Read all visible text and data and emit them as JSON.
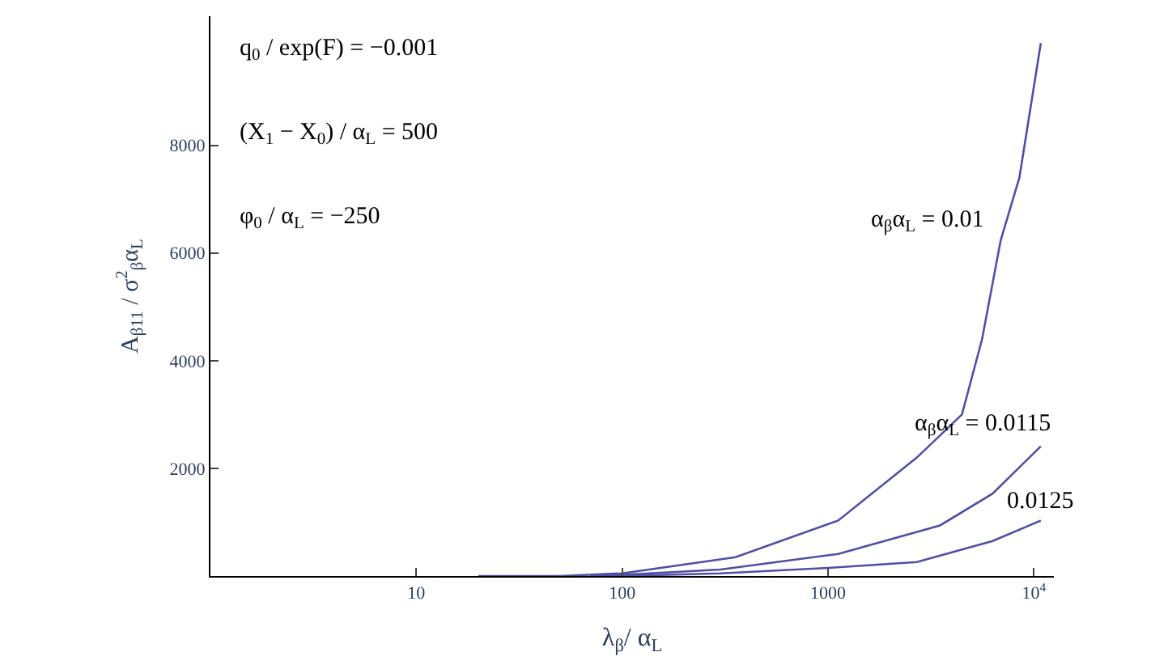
{
  "chart_data": {
    "type": "line",
    "xlabel": "λ$_{β}$/ α$_{L}$",
    "ylabel": "A$_{β11}$ / σ$^{2}$$_{β}$α$_{L}$",
    "log": "x",
    "legend": false,
    "marker": "none",
    "line_style": "solid",
    "xlim": [
      1,
      12500
    ],
    "ylim": [
      0,
      10400
    ],
    "xticks": [
      10,
      100,
      1000,
      {
        "value": 10000,
        "label": "10$^{4}$"
      }
    ],
    "yticks": [
      2000,
      4000,
      6000,
      8000
    ],
    "annotations": [
      "q$_{0}$ / exp(F) = −0.001",
      "(X$_{1}$ − X$_{0}$) / α$_{L}$ = 500",
      "φ$_{0}$ / α$_{L}$ = −250"
    ],
    "series": [
      {
        "name": "α$_{β}$α$_{L}$ = 0.01",
        "color": "#4f4fa6",
        "x": [
          20,
          50,
          100,
          355,
          1120,
          2700,
          4470,
          5600,
          6900,
          8500,
          10800
        ],
        "values": [
          0,
          0,
          50,
          350,
          1030,
          2200,
          3000,
          4400,
          6240,
          7400,
          9900
        ]
      },
      {
        "name": "α$_{β}$α$_{L}$ = 0.0115",
        "color": "#4f4fa6",
        "x": [
          70,
          100,
          300,
          1120,
          3500,
          6300,
          10800
        ],
        "values": [
          0,
          20,
          120,
          410,
          940,
          1530,
          2410
        ]
      },
      {
        "name": "0.0125",
        "color": "#4f4fa6",
        "x": [
          100,
          300,
          1000,
          2700,
          6300,
          10800
        ],
        "values": [
          0,
          50,
          150,
          260,
          650,
          1030
        ]
      }
    ]
  }
}
